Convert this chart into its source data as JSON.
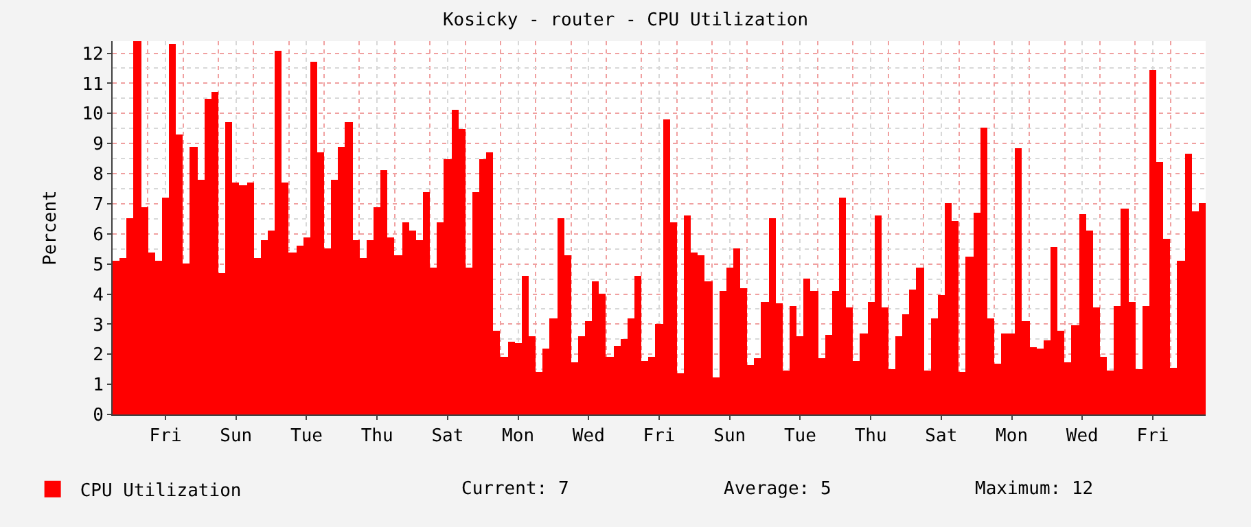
{
  "chart_data": {
    "type": "bar",
    "title": "Kosicky - router - CPU Utilization",
    "ylabel": "Percent",
    "categories": [
      null,
      null,
      null,
      null,
      null,
      null,
      null,
      "Fri",
      null,
      null,
      null,
      null,
      null,
      null,
      null,
      null,
      null,
      "Sun",
      null,
      null,
      null,
      null,
      null,
      null,
      null,
      null,
      null,
      "Tue",
      null,
      null,
      null,
      null,
      null,
      null,
      null,
      null,
      null,
      "Thu",
      null,
      null,
      null,
      null,
      null,
      null,
      null,
      null,
      null,
      "Sat",
      null,
      null,
      null,
      null,
      null,
      null,
      null,
      null,
      null,
      "Mon",
      null,
      null,
      null,
      null,
      null,
      null,
      null,
      null,
      null,
      "Wed",
      null,
      null,
      null,
      null,
      null,
      null,
      null,
      null,
      null,
      "Fri",
      null,
      null,
      null,
      null,
      null,
      null,
      null,
      null,
      null,
      "Sun",
      null,
      null,
      null,
      null,
      null,
      null,
      null,
      null,
      null,
      "Tue",
      null,
      null,
      null,
      null,
      null,
      null,
      null,
      null,
      null,
      "Thu",
      null,
      null,
      null,
      null,
      null,
      null,
      null,
      null,
      null,
      "Sat",
      null,
      null,
      null,
      null,
      null,
      null,
      null,
      null,
      null,
      "Mon",
      null,
      null,
      null,
      null,
      null,
      null,
      null,
      null,
      null,
      "Wed",
      null,
      null,
      null,
      null,
      null,
      null,
      null,
      null,
      null,
      "Fri",
      null,
      null,
      null,
      null,
      null,
      null,
      null
    ],
    "ylim": [
      0,
      12.4
    ],
    "yticks": [
      0,
      1,
      2,
      3,
      4,
      5,
      6,
      7,
      8,
      9,
      10,
      11,
      12
    ],
    "grid": true,
    "legend": "bottom left",
    "series": [
      {
        "name": "CPU Utilization",
        "color": "#ff0000",
        "values": [
          5.1,
          5.2,
          6.5,
          12.4,
          6.9,
          5.4,
          5.1,
          7.2,
          12.3,
          9.3,
          5.0,
          8.9,
          7.8,
          10.5,
          10.7,
          4.7,
          9.7,
          7.7,
          7.6,
          7.7,
          5.2,
          5.8,
          6.1,
          12.1,
          7.7,
          5.4,
          5.6,
          5.9,
          11.7,
          8.7,
          5.5,
          7.8,
          8.9,
          9.7,
          5.8,
          5.2,
          5.8,
          6.9,
          8.1,
          5.9,
          5.3,
          6.4,
          6.1,
          5.8,
          7.4,
          4.9,
          6.4,
          8.5,
          10.1,
          9.5,
          4.9,
          7.4,
          8.5,
          8.7,
          2.8,
          1.9,
          2.4,
          2.35,
          4.6,
          2.6,
          1.4,
          2.2,
          3.2,
          6.5,
          5.3,
          1.75,
          2.6,
          3.1,
          4.4,
          4.0,
          1.9,
          2.3,
          2.5,
          3.2,
          4.6,
          1.8,
          1.9,
          3.0,
          9.8,
          6.4,
          1.35,
          6.6,
          5.4,
          5.3,
          4.4,
          1.25,
          4.1,
          4.9,
          5.5,
          4.2,
          1.65,
          1.85,
          3.75,
          6.5,
          3.7,
          1.45,
          3.6,
          2.6,
          4.5,
          4.1,
          1.85,
          2.65,
          4.1,
          7.2,
          3.55,
          1.8,
          2.7,
          3.75,
          6.6,
          3.55,
          1.5,
          2.6,
          3.35,
          4.15,
          4.9,
          1.45,
          3.2,
          3.95,
          7.0,
          6.45,
          1.4,
          5.25,
          6.7,
          9.55,
          3.2,
          1.7,
          2.7,
          2.7,
          8.85,
          3.1,
          2.25,
          2.2,
          2.45,
          5.55,
          2.8,
          1.75,
          2.95,
          6.65,
          6.1,
          3.55,
          1.9,
          1.45,
          3.6,
          6.85,
          3.75,
          1.5,
          3.6,
          11.45,
          8.4,
          5.85,
          1.55,
          5.1,
          8.65,
          6.75,
          7.0
        ]
      }
    ],
    "annotations": [
      "Current: 7",
      "Average: 5",
      "Maximum: 12"
    ]
  }
}
